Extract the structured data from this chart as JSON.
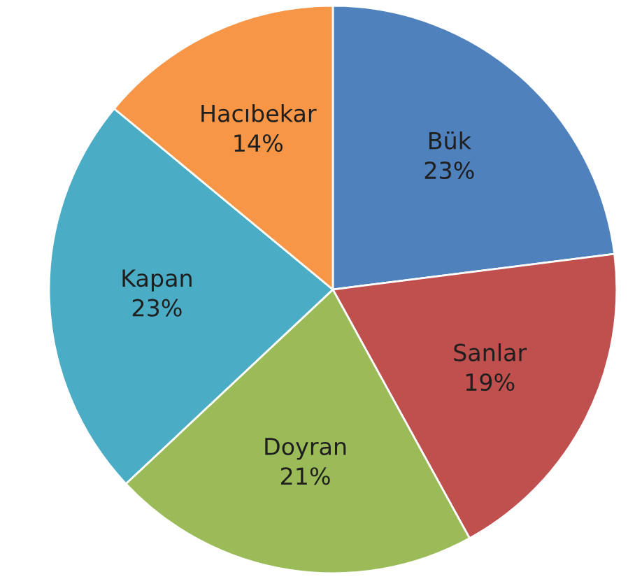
{
  "chart_data": {
    "type": "pie",
    "categories": [
      "Bük",
      "Sanlar",
      "Doyran",
      "Kapan",
      "Hacıbekar"
    ],
    "values": [
      23,
      19,
      21,
      23,
      14
    ],
    "colors": [
      "#4f81bd",
      "#c0504d",
      "#9bbb59",
      "#4bacc6",
      "#f79646"
    ],
    "value_labels": [
      "23%",
      "19%",
      "21%",
      "23%",
      "14%"
    ]
  }
}
